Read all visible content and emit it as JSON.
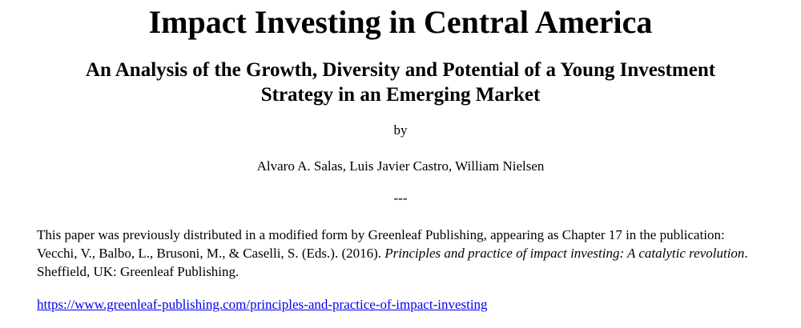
{
  "title": "Impact Investing in Central America",
  "subtitle_line1": "An Analysis of the Growth, Diversity and Potential of a Young Investment",
  "subtitle_line2": "Strategy in an Emerging Market",
  "by": "by",
  "authors": "Alvaro A. Salas, Luis Javier Castro, William Nielsen",
  "separator": "---",
  "note": {
    "part1": "This paper was previously distributed in a modified form by Greenleaf Publishing, appearing as Chapter 17 in the publication: Vecchi, V., Balbo, L., Brusoni, M., & Caselli, S. (Eds.). (2016). ",
    "italic": "Principles and practice of impact investing: A catalytic revolution",
    "part2": ". Sheffield, UK: Greenleaf Publishing."
  },
  "link": "https://www.greenleaf-publishing.com/principles-and-practice-of-impact-investing"
}
